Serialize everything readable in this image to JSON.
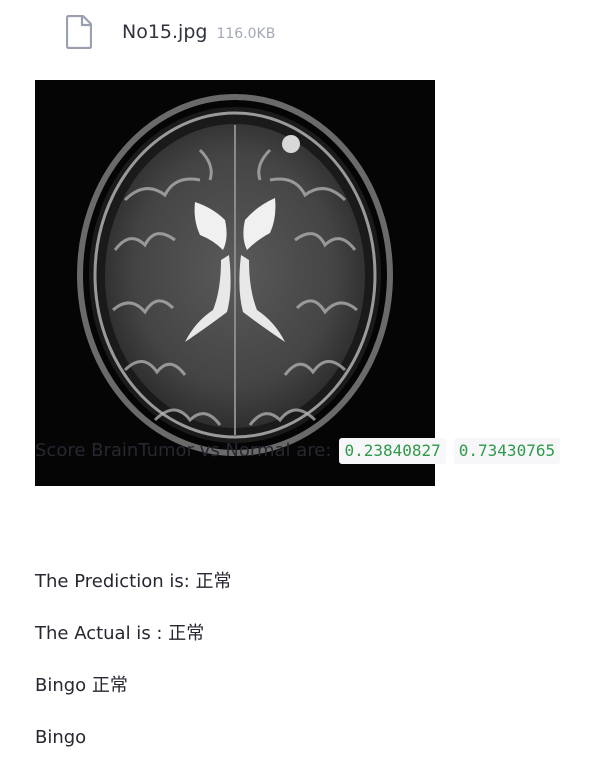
{
  "file": {
    "icon": "file-icon",
    "name": "No15.jpg",
    "size": "116.0KB"
  },
  "image": {
    "content": "mri-brain-scan"
  },
  "output": {
    "score_label": "Score BrainTumor vs Normal are:",
    "score_tumor": "0.23840827",
    "score_normal": "0.73430765",
    "prediction": "The Prediction is: 正常",
    "actual": "The Actual is : 正常",
    "bingo_result": "Bingo 正常",
    "bingo": "Bingo"
  },
  "colors": {
    "code_text": "#2e9a4a",
    "code_bg": "#f7f7f9",
    "text": "#262730",
    "muted": "#a3a8b8"
  }
}
